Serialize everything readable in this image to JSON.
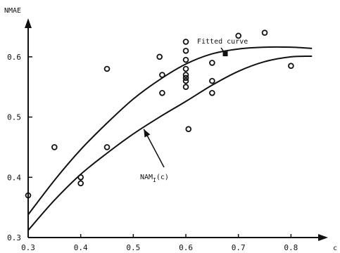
{
  "chart_data": {
    "type": "scatter",
    "title": "",
    "xlabel": "c",
    "ylabel": "NMAE",
    "xlim": [
      0.3,
      0.85
    ],
    "ylim": [
      0.3,
      0.65
    ],
    "x_ticks": [
      0.3,
      0.4,
      0.5,
      0.6,
      0.7,
      0.8
    ],
    "y_ticks": [
      0.3,
      0.4,
      0.5,
      0.6
    ],
    "grid": false,
    "series": [
      {
        "kind": "points",
        "x": [
          0.3,
          0.35,
          0.4,
          0.4,
          0.45,
          0.45,
          0.55,
          0.555,
          0.555,
          0.6,
          0.6,
          0.6,
          0.6,
          0.6,
          0.6,
          0.6,
          0.6,
          0.605,
          0.65,
          0.65,
          0.65,
          0.7,
          0.75,
          0.8
        ],
        "y": [
          0.37,
          0.45,
          0.4,
          0.39,
          0.58,
          0.45,
          0.6,
          0.57,
          0.54,
          0.625,
          0.61,
          0.595,
          0.58,
          0.57,
          0.565,
          0.55,
          0.56,
          0.48,
          0.59,
          0.56,
          0.54,
          0.635,
          0.64,
          0.585
        ]
      },
      {
        "kind": "line",
        "label": "Fitted curve",
        "x": [
          0.3,
          0.35,
          0.4,
          0.45,
          0.5,
          0.55,
          0.6,
          0.65,
          0.7,
          0.75,
          0.8,
          0.84
        ],
        "y": [
          0.338,
          0.395,
          0.446,
          0.49,
          0.53,
          0.562,
          0.588,
          0.605,
          0.613,
          0.616,
          0.616,
          0.614
        ]
      },
      {
        "kind": "line",
        "label": "NAM_I(c)",
        "x": [
          0.3,
          0.35,
          0.4,
          0.45,
          0.5,
          0.55,
          0.6,
          0.65,
          0.7,
          0.75,
          0.8,
          0.84
        ],
        "y": [
          0.312,
          0.362,
          0.405,
          0.44,
          0.472,
          0.5,
          0.526,
          0.553,
          0.576,
          0.592,
          0.6,
          0.601
        ]
      }
    ],
    "annotations": [
      {
        "text": "Fitted curve",
        "points_to": [
          0.675,
          0.605
        ]
      },
      {
        "text_main": "NAM",
        "text_sub": "I",
        "text_tail": "(c)",
        "points_to": [
          0.52,
          0.48
        ]
      }
    ]
  }
}
